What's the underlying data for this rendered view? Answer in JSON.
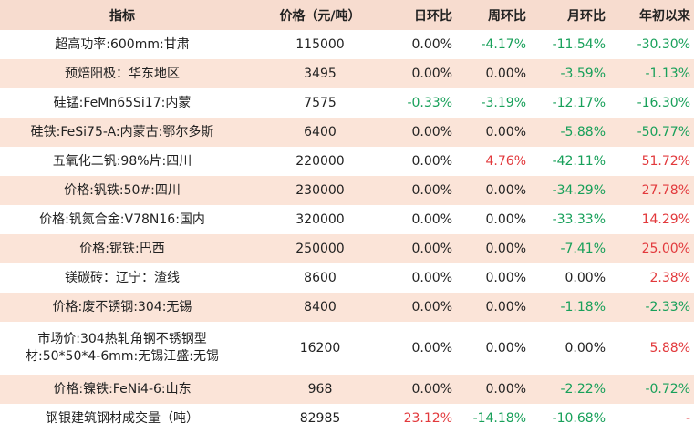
{
  "headers": [
    "指标",
    "价格（元/吨）",
    "日环比",
    "周环比",
    "月环比",
    "年初以来"
  ],
  "rows": [
    {
      "name": "超高功率:600mm:甘肃",
      "price": "115000",
      "day": "0.00%",
      "week": "-4.17%",
      "month": "-11.54%",
      "ytd": "-30.30%",
      "day_c": "black",
      "week_c": "green",
      "month_c": "green",
      "ytd_c": "green"
    },
    {
      "name": "预焙阳极：华东地区",
      "price": "3495",
      "day": "0.00%",
      "week": "0.00%",
      "month": "-3.59%",
      "ytd": "-1.13%",
      "day_c": "black",
      "week_c": "black",
      "month_c": "green",
      "ytd_c": "green"
    },
    {
      "name": "硅锰:FeMn65Si17:内蒙",
      "price": "7575",
      "day": "-0.33%",
      "week": "-3.19%",
      "month": "-12.17%",
      "ytd": "-16.30%",
      "day_c": "green",
      "week_c": "green",
      "month_c": "green",
      "ytd_c": "green"
    },
    {
      "name": "硅铁:FeSi75-A:内蒙古:鄂尔多斯",
      "price": "6400",
      "day": "0.00%",
      "week": "0.00%",
      "month": "-5.88%",
      "ytd": "-50.77%",
      "day_c": "black",
      "week_c": "black",
      "month_c": "green",
      "ytd_c": "green"
    },
    {
      "name": "五氧化二钒:98%片:四川",
      "price": "220000",
      "day": "0.00%",
      "week": "4.76%",
      "month": "-42.11%",
      "ytd": "51.72%",
      "day_c": "black",
      "week_c": "red",
      "month_c": "green",
      "ytd_c": "red"
    },
    {
      "name": "价格:钒铁:50#:四川",
      "price": "230000",
      "day": "0.00%",
      "week": "0.00%",
      "month": "-34.29%",
      "ytd": "27.78%",
      "day_c": "black",
      "week_c": "black",
      "month_c": "green",
      "ytd_c": "red"
    },
    {
      "name": "价格:钒氮合金:V78N16:国内",
      "price": "320000",
      "day": "0.00%",
      "week": "0.00%",
      "month": "-33.33%",
      "ytd": "14.29%",
      "day_c": "black",
      "week_c": "black",
      "month_c": "green",
      "ytd_c": "red"
    },
    {
      "name": "价格:铌铁:巴西",
      "price": "250000",
      "day": "0.00%",
      "week": "0.00%",
      "month": "-7.41%",
      "ytd": "25.00%",
      "day_c": "black",
      "week_c": "black",
      "month_c": "green",
      "ytd_c": "red"
    },
    {
      "name": "镁碳砖：辽宁：渣线",
      "price": "8600",
      "day": "0.00%",
      "week": "0.00%",
      "month": "0.00%",
      "ytd": "2.38%",
      "day_c": "black",
      "week_c": "black",
      "month_c": "black",
      "ytd_c": "red"
    },
    {
      "name": "价格:废不锈钢:304:无锡",
      "price": "8400",
      "day": "0.00%",
      "week": "0.00%",
      "month": "-1.18%",
      "ytd": "-2.33%",
      "day_c": "black",
      "week_c": "black",
      "month_c": "green",
      "ytd_c": "green"
    },
    {
      "name_lines": [
        "市场价:304热轧角钢不锈钢型",
        "材:50*50*4-6mm:无锡江盛:无锡"
      ],
      "price": "16200",
      "day": "0.00%",
      "week": "0.00%",
      "month": "0.00%",
      "ytd": "5.88%",
      "day_c": "black",
      "week_c": "black",
      "month_c": "black",
      "ytd_c": "red",
      "tall": true
    },
    {
      "name": "价格:镍铁:FeNi4-6:山东",
      "price": "968",
      "day": "0.00%",
      "week": "0.00%",
      "month": "-2.22%",
      "ytd": "-0.72%",
      "day_c": "black",
      "week_c": "black",
      "month_c": "green",
      "ytd_c": "green"
    },
    {
      "name": "钢银建筑钢材成交量（吨）",
      "price": "82985",
      "day": "23.12%",
      "week": "-14.18%",
      "month": "-10.68%",
      "ytd": "-",
      "day_c": "red",
      "week_c": "green",
      "month_c": "green",
      "ytd_c": "red"
    }
  ]
}
